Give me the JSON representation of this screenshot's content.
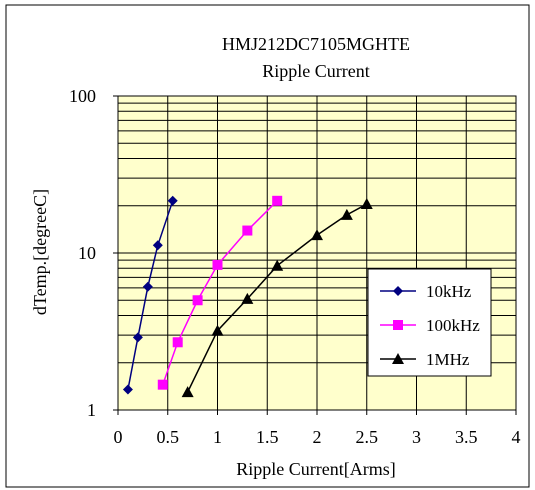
{
  "chart_data": {
    "type": "line",
    "title": "HMJ212DC7105MGHTE",
    "subtitle": "Ripple Current",
    "xlabel": "Ripple Current[Arms]",
    "ylabel": "dTemp.[degreeC]",
    "xlim": [
      0,
      4
    ],
    "ylim": [
      1,
      100
    ],
    "yscale": "log",
    "x_ticks": [
      "0",
      "0.5",
      "1",
      "1.5",
      "2",
      "2.5",
      "3",
      "3.5",
      "4"
    ],
    "y_ticks": [
      "1",
      "10",
      "100"
    ],
    "grid": true,
    "legend_position": "right",
    "plot_background": "#ffffcc",
    "series": [
      {
        "name": "10kHz",
        "color": "#000080",
        "marker": "diamond",
        "x": [
          0.1,
          0.2,
          0.3,
          0.4,
          0.55
        ],
        "y": [
          1.35,
          2.9,
          6.1,
          11.2,
          21.5
        ]
      },
      {
        "name": "100kHz",
        "color": "#ff00ff",
        "marker": "square",
        "x": [
          0.45,
          0.6,
          0.8,
          1.0,
          1.3,
          1.6
        ],
        "y": [
          1.45,
          2.7,
          5.0,
          8.4,
          13.9,
          21.5
        ]
      },
      {
        "name": "1MHz",
        "color": "#000000",
        "marker": "triangle",
        "x": [
          0.7,
          1.0,
          1.3,
          1.6,
          2.0,
          2.3,
          2.5
        ],
        "y": [
          1.3,
          3.2,
          5.1,
          8.3,
          13.0,
          17.5,
          20.5
        ]
      }
    ]
  }
}
